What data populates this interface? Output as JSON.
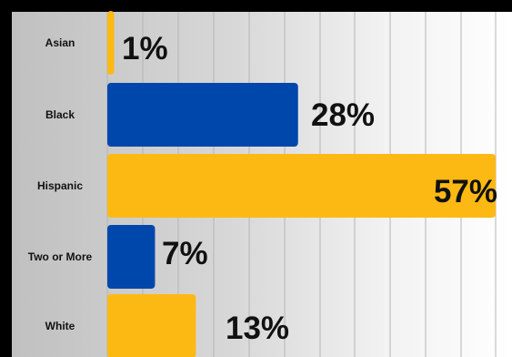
{
  "chart_data": {
    "type": "bar",
    "orientation": "horizontal",
    "categories": [
      "Asian",
      "Black",
      "Hispanic",
      "Two or More",
      "White"
    ],
    "values": [
      1,
      28,
      57,
      7,
      13
    ],
    "value_labels": [
      "1%",
      "28%",
      "57%",
      "7%",
      "13%"
    ],
    "bar_colors": [
      "#FDB913",
      "#0047AB",
      "#FDB913",
      "#0047AB",
      "#FDB913"
    ],
    "xlim": [
      0,
      57
    ],
    "grid": true,
    "legend": "none"
  }
}
